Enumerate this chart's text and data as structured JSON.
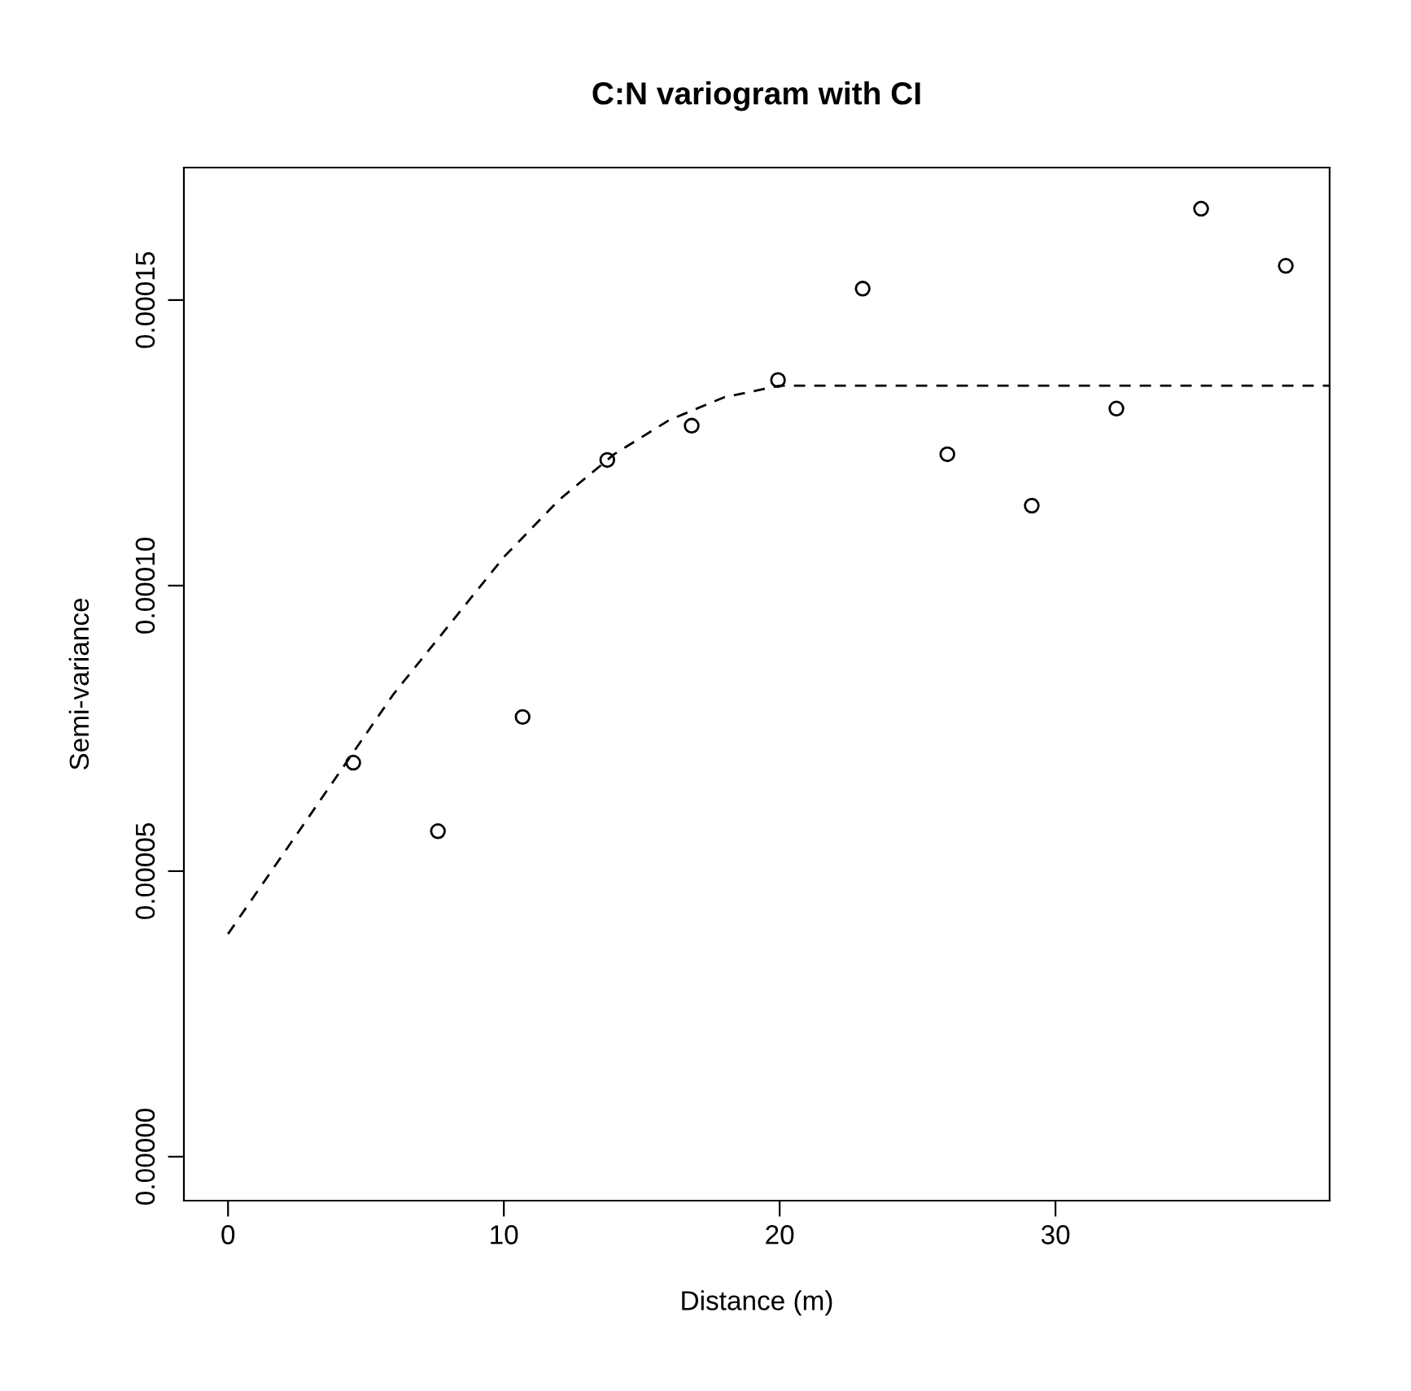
{
  "chart_data": {
    "type": "scatter",
    "title": "C:N variogram with CI",
    "xlabel": "Distance (m)",
    "ylabel": "Semi-variance",
    "xlim": [
      -1.6,
      39.94
    ],
    "ylim": [
      -7.7e-06,
      0.0001732
    ],
    "xticks": [
      0,
      10,
      20,
      30
    ],
    "yticks": [
      {
        "value": 0,
        "label": "0.00000"
      },
      {
        "value": 5e-05,
        "label": "0.00005"
      },
      {
        "value": 0.0001,
        "label": "0.00010"
      },
      {
        "value": 0.00015,
        "label": "0.00015"
      }
    ],
    "grid": false,
    "legend": false,
    "series": [
      {
        "color": "#000000",
        "marker": "circle",
        "x": [
          4.54,
          7.61,
          10.68,
          13.75,
          16.81,
          19.94,
          23.01,
          26.08,
          29.14,
          32.21,
          35.28,
          38.35
        ],
        "values": [
          6.9e-05,
          5.7e-05,
          7.7e-05,
          0.000122,
          0.000128,
          0.000136,
          0.000152,
          0.000123,
          0.000114,
          0.000131,
          0.000166,
          0.000156
        ]
      },
      {
        "type": "line",
        "color": "#000000",
        "line_style": "dashed",
        "marker": "none",
        "x": [
          0,
          2,
          4,
          6,
          8,
          10,
          12,
          14,
          16,
          18,
          20,
          39.94
        ],
        "values": [
          3.9e-05,
          5.3e-05,
          6.7e-05,
          8.1e-05,
          9.3e-05,
          0.000105,
          0.000115,
          0.000123,
          0.000129,
          0.000133,
          0.000135,
          0.000135
        ]
      }
    ]
  }
}
